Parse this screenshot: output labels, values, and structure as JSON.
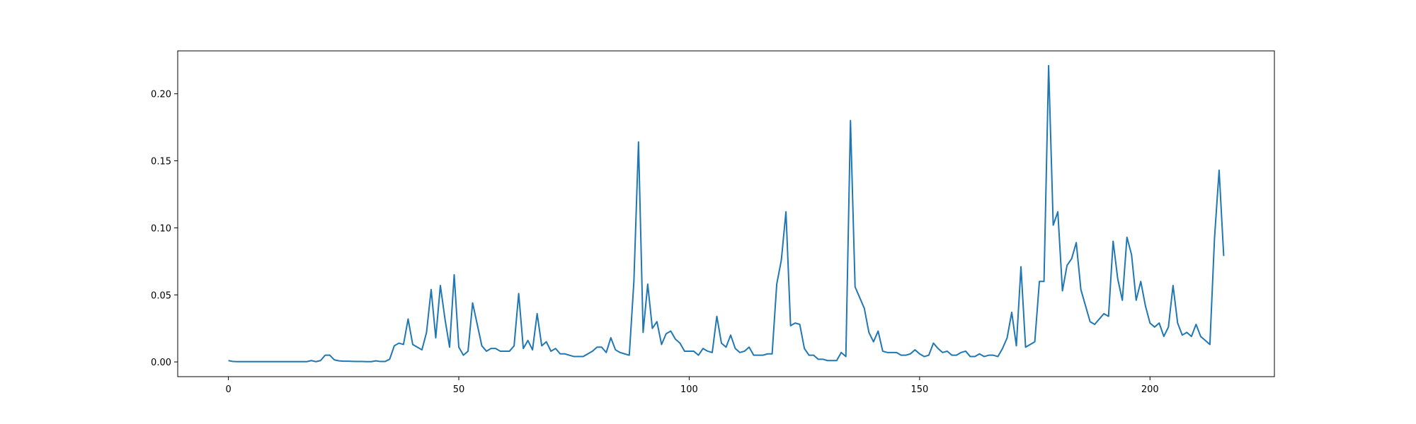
{
  "chart_data": {
    "type": "line",
    "title": "",
    "xlabel": "",
    "ylabel": "",
    "xlim": [
      -11,
      227
    ],
    "ylim": [
      -0.011,
      0.232
    ],
    "grid": false,
    "legend": "none",
    "xticks": [
      0,
      50,
      100,
      150,
      200
    ],
    "xtick_labels": [
      "0",
      "50",
      "100",
      "150",
      "200"
    ],
    "yticks": [
      0.0,
      0.05,
      0.1,
      0.15,
      0.2
    ],
    "ytick_labels": [
      "0.00",
      "0.05",
      "0.10",
      "0.15",
      "0.20"
    ],
    "series": [
      {
        "name": "",
        "color": "#1f77b4",
        "x_start": 0,
        "x_step": 1,
        "values": [
          0.001,
          0.0003,
          0.0002,
          0.0002,
          0.0002,
          0.0002,
          0.0002,
          0.0002,
          0.0002,
          0.0002,
          0.0002,
          0.0002,
          0.0002,
          0.0002,
          0.0002,
          0.0002,
          0.0002,
          0.0002,
          0.001,
          0.0002,
          0.001,
          0.005,
          0.005,
          0.0015,
          0.0008,
          0.0005,
          0.0005,
          0.0004,
          0.0003,
          0.0003,
          0.0002,
          0.0002,
          0.0008,
          0.0003,
          0.0003,
          0.002,
          0.012,
          0.014,
          0.013,
          0.032,
          0.013,
          0.011,
          0.009,
          0.022,
          0.054,
          0.018,
          0.057,
          0.032,
          0.011,
          0.065,
          0.011,
          0.005,
          0.008,
          0.044,
          0.028,
          0.012,
          0.008,
          0.01,
          0.01,
          0.008,
          0.008,
          0.008,
          0.012,
          0.051,
          0.01,
          0.016,
          0.009,
          0.036,
          0.012,
          0.015,
          0.008,
          0.01,
          0.006,
          0.006,
          0.005,
          0.004,
          0.004,
          0.004,
          0.006,
          0.008,
          0.011,
          0.011,
          0.007,
          0.018,
          0.009,
          0.007,
          0.006,
          0.005,
          0.06,
          0.164,
          0.022,
          0.058,
          0.025,
          0.03,
          0.013,
          0.021,
          0.023,
          0.017,
          0.014,
          0.008,
          0.008,
          0.008,
          0.005,
          0.01,
          0.008,
          0.007,
          0.034,
          0.014,
          0.011,
          0.02,
          0.01,
          0.007,
          0.008,
          0.011,
          0.005,
          0.005,
          0.005,
          0.006,
          0.006,
          0.058,
          0.076,
          0.112,
          0.027,
          0.029,
          0.028,
          0.01,
          0.005,
          0.005,
          0.002,
          0.002,
          0.001,
          0.001,
          0.001,
          0.007,
          0.004,
          0.18,
          0.056,
          0.048,
          0.04,
          0.022,
          0.015,
          0.023,
          0.008,
          0.007,
          0.007,
          0.007,
          0.005,
          0.005,
          0.006,
          0.009,
          0.006,
          0.004,
          0.005,
          0.014,
          0.01,
          0.007,
          0.008,
          0.005,
          0.005,
          0.007,
          0.008,
          0.004,
          0.004,
          0.006,
          0.004,
          0.005,
          0.005,
          0.004,
          0.01,
          0.018,
          0.037,
          0.012,
          0.071,
          0.011,
          0.013,
          0.015,
          0.06,
          0.06,
          0.221,
          0.102,
          0.112,
          0.053,
          0.072,
          0.077,
          0.089,
          0.054,
          0.042,
          0.03,
          0.028,
          0.032,
          0.036,
          0.034,
          0.09,
          0.062,
          0.046,
          0.093,
          0.08,
          0.046,
          0.06,
          0.042,
          0.029,
          0.026,
          0.029,
          0.019,
          0.026,
          0.057,
          0.029,
          0.02,
          0.022,
          0.019,
          0.028,
          0.019,
          0.016,
          0.013,
          0.092,
          0.143,
          0.079
        ]
      }
    ]
  }
}
